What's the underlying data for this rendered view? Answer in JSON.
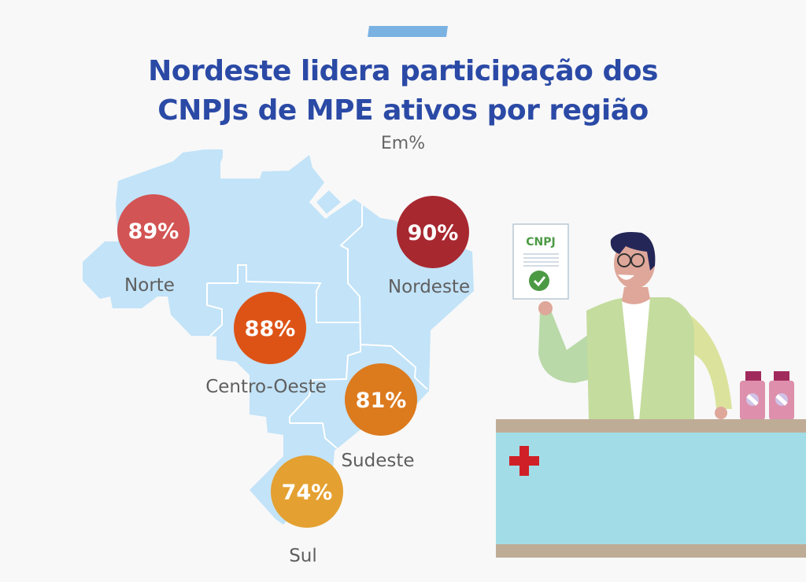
{
  "title_line1": "Nordeste lidera participação dos",
  "title_line2": "CNPJs de MPE ativos por região",
  "subtitle": "Em%",
  "illustration": {
    "document_label": "CNPJ"
  },
  "colors": {
    "title": "#2b4aa6",
    "map": "#c2e3f8",
    "counter": "#a2dde7",
    "counter_trim": "#bfac97",
    "cross": "#d02027"
  },
  "chart_data": {
    "type": "map-bubble",
    "title": "Nordeste lidera participação dos CNPJs de MPE ativos por região",
    "unit": "Em%",
    "categories": [
      "Norte",
      "Nordeste",
      "Centro-Oeste",
      "Sudeste",
      "Sul"
    ],
    "values": [
      89,
      90,
      88,
      81,
      74
    ],
    "value_labels": [
      "89%",
      "90%",
      "88%",
      "81%",
      "74%"
    ],
    "colors": [
      "#d35454",
      "#a82830",
      "#dd5316",
      "#dc7a1e",
      "#e4a031"
    ]
  }
}
